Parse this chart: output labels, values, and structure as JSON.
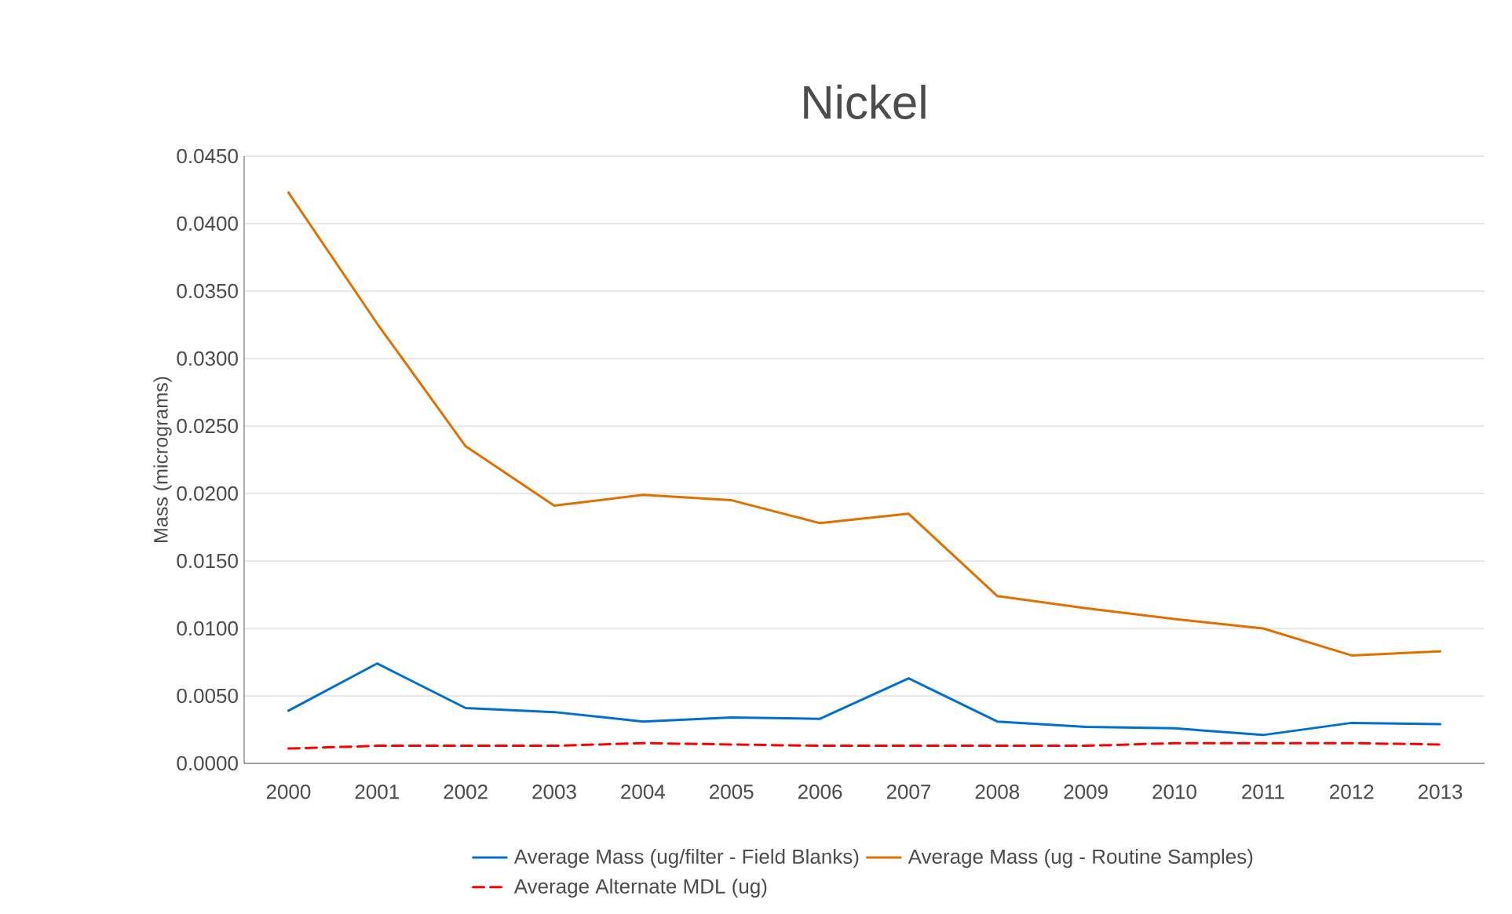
{
  "chart_data": {
    "type": "line",
    "title": "Nickel",
    "ylabel": "Mass (micrograms)",
    "categories": [
      "2000",
      "2001",
      "2002",
      "2003",
      "2004",
      "2005",
      "2006",
      "2007",
      "2008",
      "2009",
      "2010",
      "2011",
      "2012",
      "2013"
    ],
    "series": [
      {
        "name": "Average Mass (ug/filter - Field Blanks)",
        "color": "#0070d0",
        "line_style": "solid",
        "values": [
          0.0039,
          0.0074,
          0.0041,
          0.0038,
          0.0031,
          0.0034,
          0.0033,
          0.0063,
          0.0031,
          0.0027,
          0.0026,
          0.0021,
          0.003,
          0.0029
        ]
      },
      {
        "name": "Average Mass (ug - Routine Samples)",
        "color": "#e07000",
        "line_style": "solid",
        "values": [
          0.0423,
          0.0326,
          0.0235,
          0.0191,
          0.0199,
          0.0195,
          0.0178,
          0.0185,
          0.0124,
          0.0115,
          0.0107,
          0.01,
          0.008,
          0.0083
        ]
      },
      {
        "name": "Average Alternate MDL (ug)",
        "color": "#ff0000",
        "line_style": "dashed",
        "values": [
          0.0011,
          0.0013,
          0.0013,
          0.0013,
          0.0015,
          0.0014,
          0.0013,
          0.0013,
          0.0013,
          0.0013,
          0.0015,
          0.0015,
          0.0015,
          0.0014
        ]
      }
    ],
    "ylim": [
      0,
      0.045
    ],
    "yticks": [
      {
        "value": 0,
        "label": "0.0000"
      },
      {
        "value": 0.005,
        "label": "0.0050"
      },
      {
        "value": 0.01,
        "label": "0.0100"
      },
      {
        "value": 0.015,
        "label": "0.0150"
      },
      {
        "value": 0.02,
        "label": "0.0200"
      },
      {
        "value": 0.025,
        "label": "0.0250"
      },
      {
        "value": 0.03,
        "label": "0.0300"
      },
      {
        "value": 0.035,
        "label": "0.0350"
      },
      {
        "value": 0.04,
        "label": "0.0400"
      },
      {
        "value": 0.045,
        "label": "0.0450"
      }
    ],
    "grid": "y",
    "legend": "bottom",
    "marker": "none"
  }
}
